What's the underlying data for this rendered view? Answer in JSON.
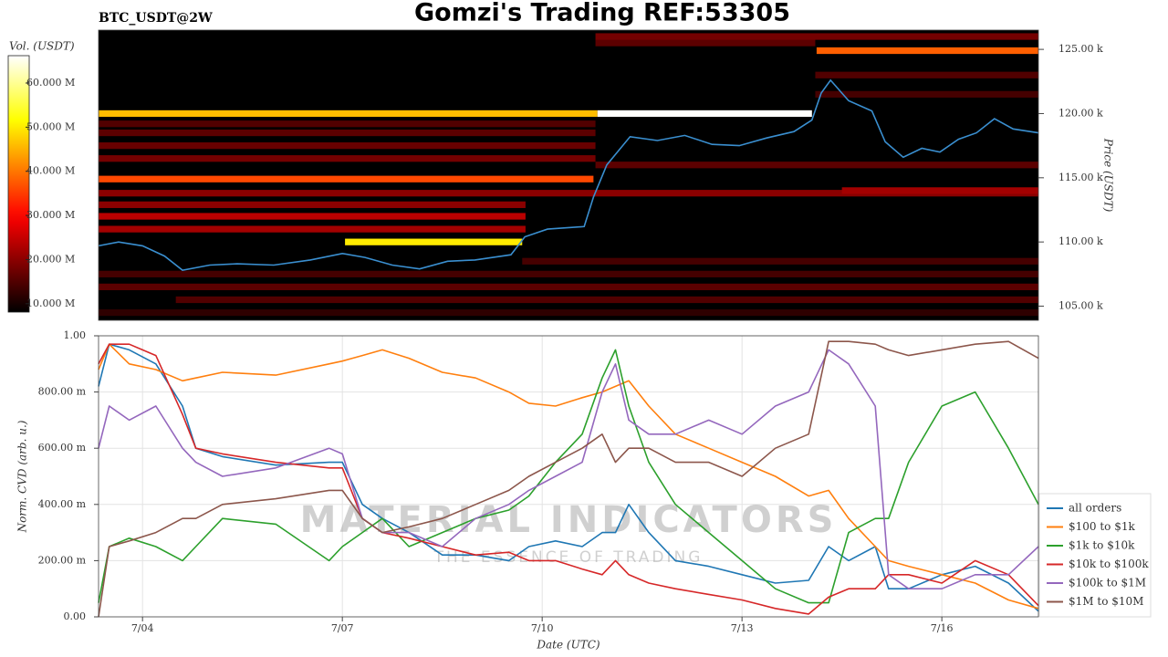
{
  "chart_data": [
    {
      "type": "heatmap",
      "title": "Gomzi's Trading REF:53305",
      "subtitle": "BTC_USDT@2W",
      "ylabel": "Price (USDT)",
      "xlim": [
        3.34,
        17.45
      ],
      "ylim": [
        103900,
        126500
      ],
      "yticks": [
        {
          "value": 105000,
          "label": "105.00 k"
        },
        {
          "value": 110000,
          "label": "110.00 k"
        },
        {
          "value": 115000,
          "label": "115.00 k"
        },
        {
          "value": 120000,
          "label": "120.00 k"
        },
        {
          "value": 125000,
          "label": "125.00 k"
        }
      ],
      "colormap": "hot",
      "colorbar": {
        "label": "Vol. (USDT)",
        "lim": [
          8100000,
          66200000
        ],
        "ticks": [
          {
            "value": 10000000,
            "label": "10.000 M"
          },
          {
            "value": 20000000,
            "label": "20.000 M"
          },
          {
            "value": 30000000,
            "label": "30.000 M"
          },
          {
            "value": 40000000,
            "label": "40.000 M"
          },
          {
            "value": 50000000,
            "label": "50.000 M"
          },
          {
            "value": 60000000,
            "label": "60.000 M"
          }
        ]
      },
      "bands": [
        {
          "price": 104500,
          "start": 3.34,
          "end": 17.45,
          "volume": 12000000
        },
        {
          "price": 105500,
          "start": 4.5,
          "end": 17.45,
          "volume": 15000000
        },
        {
          "price": 106500,
          "start": 3.34,
          "end": 17.45,
          "volume": 16000000
        },
        {
          "price": 107500,
          "start": 3.34,
          "end": 17.45,
          "volume": 14000000
        },
        {
          "price": 108500,
          "start": 9.7,
          "end": 17.45,
          "volume": 14000000
        },
        {
          "price": 111000,
          "start": 3.34,
          "end": 9.75,
          "volume": 22000000
        },
        {
          "price": 112000,
          "start": 3.34,
          "end": 9.75,
          "volume": 24000000
        },
        {
          "price": 112900,
          "start": 3.34,
          "end": 9.75,
          "volume": 20000000
        },
        {
          "price": 113800,
          "start": 3.34,
          "end": 17.45,
          "volume": 20000000
        },
        {
          "price": 114000,
          "start": 14.5,
          "end": 17.45,
          "volume": 22000000
        },
        {
          "price": 116000,
          "start": 10.8,
          "end": 17.45,
          "volume": 16000000
        },
        {
          "price": 116500,
          "start": 3.34,
          "end": 10.8,
          "volume": 18000000
        },
        {
          "price": 117500,
          "start": 3.34,
          "end": 10.8,
          "volume": 17000000
        },
        {
          "price": 118500,
          "start": 3.34,
          "end": 10.8,
          "volume": 16000000
        },
        {
          "price": 119200,
          "start": 3.34,
          "end": 10.8,
          "volume": 15000000
        },
        {
          "price": 121500,
          "start": 14.1,
          "end": 17.45,
          "volume": 14000000
        },
        {
          "price": 123000,
          "start": 14.1,
          "end": 17.45,
          "volume": 15000000
        },
        {
          "price": 125500,
          "start": 10.8,
          "end": 14.1,
          "volume": 16000000
        },
        {
          "price": 126000,
          "start": 10.8,
          "end": 17.45,
          "volume": 18000000
        },
        {
          "price": 114900,
          "start": 3.34,
          "end": 10.77,
          "volume": 36000000
        },
        {
          "price": 110000,
          "start": 7.04,
          "end": 9.7,
          "volume": 50000000
        },
        {
          "price": 124900,
          "start": 14.12,
          "end": 17.45,
          "volume": 38000000
        },
        {
          "price": 120000,
          "start": 3.34,
          "end": 10.83,
          "volume": 46000000
        },
        {
          "price": 120000,
          "start": 10.83,
          "end": 14.05,
          "volume": 66000000
        }
      ],
      "price": {
        "color": "#3a8fd0",
        "x": [
          3.34,
          3.64,
          4.0,
          4.33,
          4.6,
          5.01,
          5.42,
          5.97,
          6.52,
          7.0,
          7.34,
          7.75,
          8.16,
          8.58,
          8.99,
          9.53,
          9.74,
          10.08,
          10.63,
          10.77,
          10.97,
          11.32,
          11.73,
          12.14,
          12.55,
          12.96,
          13.37,
          13.78,
          14.05,
          14.19,
          14.33,
          14.6,
          14.95,
          15.15,
          15.42,
          15.7,
          15.97,
          16.25,
          16.52,
          16.79,
          17.07,
          17.45
        ],
        "values": [
          109700,
          110000,
          109700,
          108900,
          107800,
          108200,
          108300,
          108200,
          108600,
          109100,
          108800,
          108200,
          107900,
          108500,
          108600,
          109000,
          110400,
          111000,
          111200,
          113500,
          116000,
          118200,
          117900,
          118300,
          117600,
          117500,
          118100,
          118600,
          119500,
          121600,
          122600,
          121000,
          120200,
          117800,
          116600,
          117300,
          117000,
          118000,
          118500,
          119600,
          118800,
          118500
        ]
      }
    },
    {
      "type": "line",
      "xlabel": "Date (UTC)",
      "ylabel": "Norm. CVD (arb. u.)",
      "watermark": [
        "MATERIAL INDICATORS",
        "THE ESSENCE OF TRADING"
      ],
      "xlim": [
        3.34,
        17.45
      ],
      "ylim": [
        0,
        1
      ],
      "xticks": [
        {
          "value": 4,
          "label": "7/04"
        },
        {
          "value": 7,
          "label": "7/07"
        },
        {
          "value": 10,
          "label": "7/10"
        },
        {
          "value": 13,
          "label": "7/13"
        },
        {
          "value": 16,
          "label": "7/16"
        }
      ],
      "yticks": [
        {
          "value": 0,
          "label": "0.00"
        },
        {
          "value": 0.2,
          "label": "200.00 m"
        },
        {
          "value": 0.4,
          "label": "400.00 m"
        },
        {
          "value": 0.6,
          "label": "600.00 m"
        },
        {
          "value": 0.8,
          "label": "800.00 m"
        },
        {
          "value": 1,
          "label": "1.00"
        }
      ],
      "grid": true,
      "legend": "lower right",
      "x": [
        3.34,
        3.5,
        3.8,
        4.2,
        4.6,
        4.8,
        5.2,
        6.0,
        6.8,
        7.0,
        7.3,
        7.6,
        8.0,
        8.5,
        9.0,
        9.5,
        9.8,
        10.2,
        10.6,
        10.9,
        11.1,
        11.3,
        11.6,
        12.0,
        12.5,
        13.0,
        13.5,
        14.0,
        14.3,
        14.6,
        15.0,
        15.2,
        15.5,
        16.0,
        16.5,
        17.0,
        17.45
      ],
      "series": [
        {
          "name": "all orders",
          "color": "#1f77b4",
          "values": [
            0.82,
            0.97,
            0.95,
            0.9,
            0.75,
            0.6,
            0.57,
            0.54,
            0.55,
            0.55,
            0.4,
            0.35,
            0.3,
            0.22,
            0.22,
            0.2,
            0.25,
            0.27,
            0.25,
            0.3,
            0.3,
            0.4,
            0.3,
            0.2,
            0.18,
            0.15,
            0.12,
            0.13,
            0.25,
            0.2,
            0.25,
            0.1,
            0.1,
            0.15,
            0.18,
            0.12,
            0.02
          ]
        },
        {
          "name": "$100 to $1k",
          "color": "#ff7f0e",
          "values": [
            0.88,
            0.97,
            0.9,
            0.88,
            0.84,
            0.85,
            0.87,
            0.86,
            0.9,
            0.91,
            0.93,
            0.95,
            0.92,
            0.87,
            0.85,
            0.8,
            0.76,
            0.75,
            0.78,
            0.8,
            0.82,
            0.84,
            0.75,
            0.65,
            0.6,
            0.55,
            0.5,
            0.43,
            0.45,
            0.35,
            0.25,
            0.2,
            0.18,
            0.15,
            0.12,
            0.06,
            0.03
          ]
        },
        {
          "name": "$1k to $10k",
          "color": "#2ca02c",
          "values": [
            0.05,
            0.25,
            0.28,
            0.25,
            0.2,
            0.25,
            0.35,
            0.33,
            0.2,
            0.25,
            0.3,
            0.35,
            0.25,
            0.3,
            0.35,
            0.38,
            0.43,
            0.55,
            0.65,
            0.85,
            0.95,
            0.75,
            0.55,
            0.4,
            0.3,
            0.2,
            0.1,
            0.05,
            0.05,
            0.3,
            0.35,
            0.35,
            0.55,
            0.75,
            0.8,
            0.6,
            0.4
          ]
        },
        {
          "name": "$10k to $100k",
          "color": "#d62728",
          "values": [
            0.9,
            0.97,
            0.97,
            0.93,
            0.72,
            0.6,
            0.58,
            0.55,
            0.53,
            0.53,
            0.35,
            0.3,
            0.28,
            0.25,
            0.22,
            0.23,
            0.2,
            0.2,
            0.17,
            0.15,
            0.2,
            0.15,
            0.12,
            0.1,
            0.08,
            0.06,
            0.03,
            0.01,
            0.07,
            0.1,
            0.1,
            0.15,
            0.15,
            0.12,
            0.2,
            0.15,
            0.04
          ]
        },
        {
          "name": "$100k to $1M",
          "color": "#9467bd",
          "values": [
            0.6,
            0.75,
            0.7,
            0.75,
            0.6,
            0.55,
            0.5,
            0.53,
            0.6,
            0.58,
            0.35,
            0.3,
            0.3,
            0.25,
            0.35,
            0.4,
            0.45,
            0.5,
            0.55,
            0.8,
            0.9,
            0.7,
            0.65,
            0.65,
            0.7,
            0.65,
            0.75,
            0.8,
            0.95,
            0.9,
            0.75,
            0.15,
            0.1,
            0.1,
            0.15,
            0.15,
            0.25
          ]
        },
        {
          "name": "$1M to $10M",
          "color": "#8c564b",
          "values": [
            0.0,
            0.25,
            0.27,
            0.3,
            0.35,
            0.35,
            0.4,
            0.42,
            0.45,
            0.45,
            0.35,
            0.3,
            0.32,
            0.35,
            0.4,
            0.45,
            0.5,
            0.55,
            0.6,
            0.65,
            0.55,
            0.6,
            0.6,
            0.55,
            0.55,
            0.5,
            0.6,
            0.65,
            0.98,
            0.98,
            0.97,
            0.95,
            0.93,
            0.95,
            0.97,
            0.98,
            0.92
          ]
        }
      ]
    }
  ]
}
